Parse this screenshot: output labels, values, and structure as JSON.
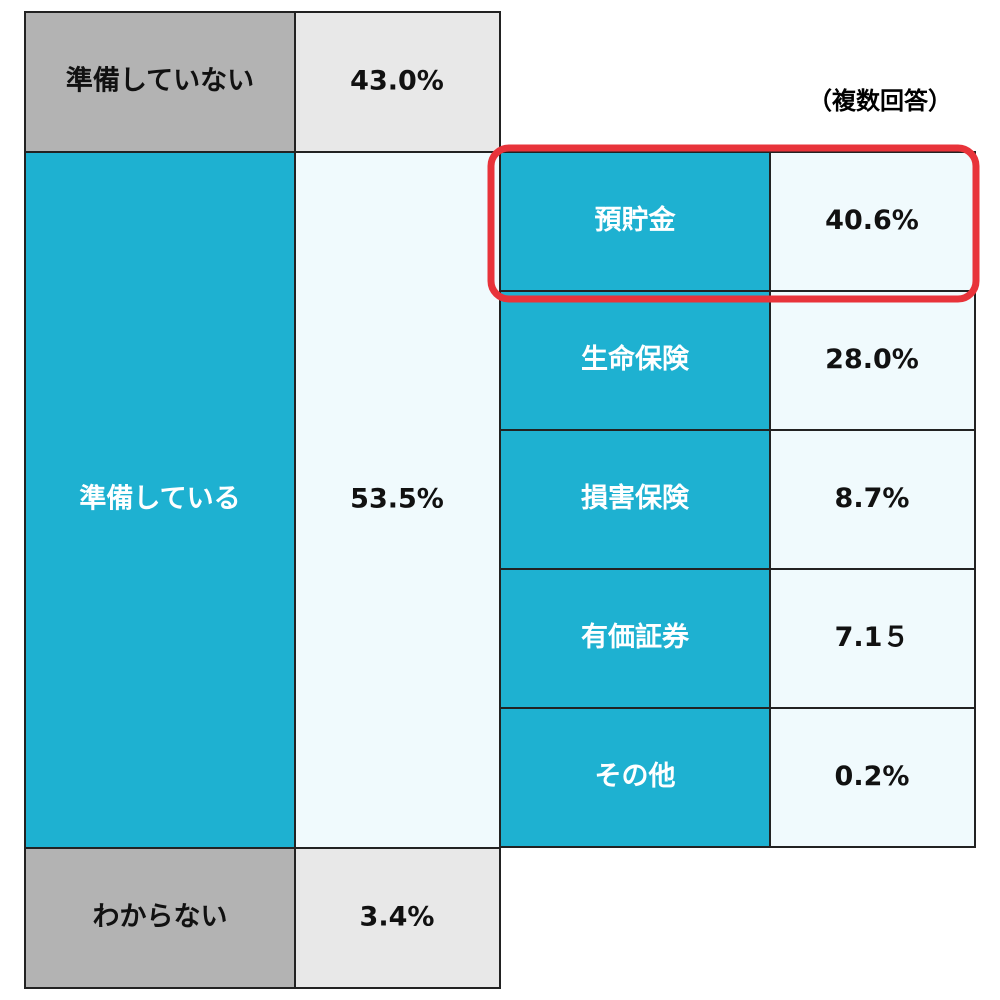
{
  "left_table": {
    "rows": [
      [
        "準備していない",
        "43.0%"
      ],
      [
        "準備している",
        "53.5%"
      ],
      [
        "わからない",
        "3.4%"
      ]
    ]
  },
  "note": "（複数回答）",
  "right_table": {
    "rows": [
      [
        "預貯金",
        "40.6%"
      ],
      [
        "生命保険",
        "28.0%"
      ],
      [
        "損害保険",
        "8.7%"
      ],
      [
        "有価証券",
        "7.1５"
      ],
      [
        "その他",
        "0.2%"
      ]
    ]
  }
}
